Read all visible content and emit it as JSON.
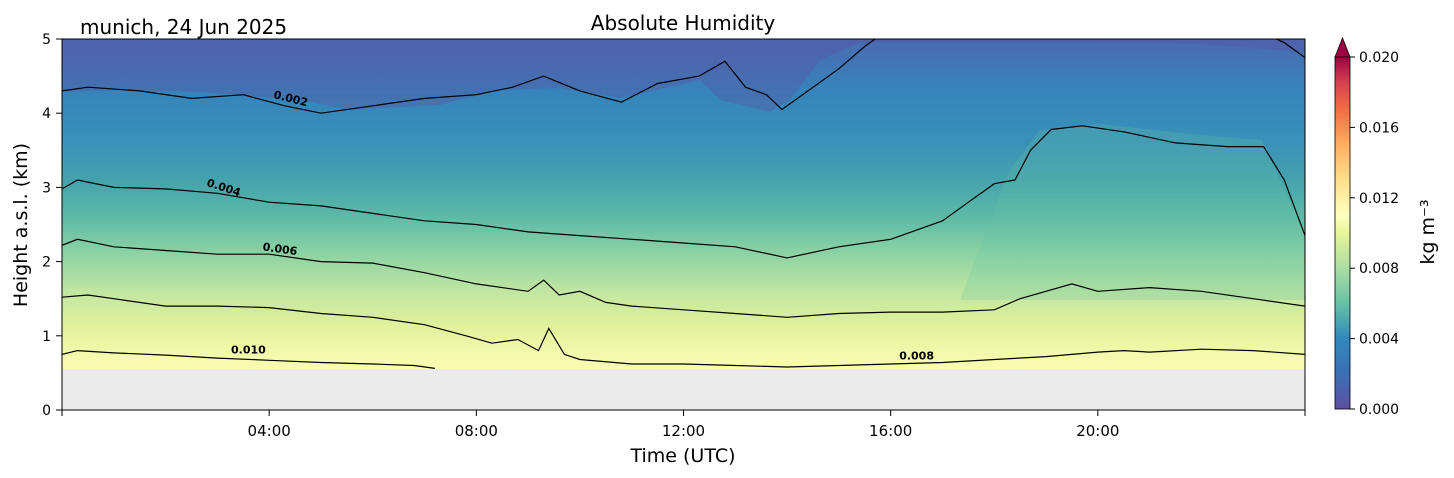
{
  "location_date": "munich, 24 Jun 2025",
  "chart_data": {
    "type": "heatmap",
    "title": "Absolute Humidity",
    "xlabel": "Time (UTC)",
    "ylabel": "Height a.s.l. (km)",
    "x_unit": "hours",
    "xlim": [
      0,
      24
    ],
    "ylim": [
      0,
      5
    ],
    "x_ticks": [
      {
        "value": 4,
        "label": "04:00"
      },
      {
        "value": 8,
        "label": "08:00"
      },
      {
        "value": 12,
        "label": "12:00"
      },
      {
        "value": 16,
        "label": "16:00"
      },
      {
        "value": 20,
        "label": "20:00"
      }
    ],
    "y_ticks": [
      {
        "value": 0,
        "label": "0"
      },
      {
        "value": 1,
        "label": "1"
      },
      {
        "value": 2,
        "label": "2"
      },
      {
        "value": 3,
        "label": "3"
      },
      {
        "value": 4,
        "label": "4"
      },
      {
        "value": 5,
        "label": "5"
      }
    ],
    "surface_height_km": 0.55,
    "colorbar": {
      "label": "kg m⁻³",
      "min": 0.0,
      "max": 0.02,
      "extend": "max",
      "levels": 40,
      "ticks": [
        {
          "value": 0.0,
          "label": "0.000"
        },
        {
          "value": 0.004,
          "label": "0.004"
        },
        {
          "value": 0.008,
          "label": "0.008"
        },
        {
          "value": 0.012,
          "label": "0.012"
        },
        {
          "value": 0.016,
          "label": "0.016"
        },
        {
          "value": 0.02,
          "label": "0.020"
        }
      ]
    },
    "contours": [
      {
        "level": 0.002,
        "label": "0.002",
        "label_at": [
          4.4,
          4.15
        ],
        "points": [
          [
            0,
            4.3
          ],
          [
            0.5,
            4.35
          ],
          [
            1.5,
            4.3
          ],
          [
            2.5,
            4.2
          ],
          [
            3.5,
            4.25
          ],
          [
            4.3,
            4.1
          ],
          [
            5,
            4.0
          ],
          [
            6,
            4.1
          ],
          [
            7,
            4.2
          ],
          [
            8,
            4.25
          ],
          [
            8.7,
            4.35
          ],
          [
            9.3,
            4.5
          ],
          [
            10,
            4.3
          ],
          [
            10.8,
            4.15
          ],
          [
            11.5,
            4.4
          ],
          [
            12.3,
            4.5
          ],
          [
            12.8,
            4.7
          ],
          [
            13.2,
            4.35
          ],
          [
            13.6,
            4.25
          ],
          [
            13.9,
            4.05
          ],
          [
            14.3,
            4.25
          ],
          [
            15,
            4.6
          ],
          [
            15.5,
            4.9
          ],
          [
            15.8,
            5.05
          ]
        ]
      },
      {
        "level": 0.002,
        "label": "",
        "label_at": null,
        "points": [
          [
            23.3,
            5.05
          ],
          [
            23.6,
            4.95
          ],
          [
            24,
            4.75
          ]
        ]
      },
      {
        "level": 0.004,
        "label": "0.004",
        "label_at": [
          3.1,
          2.95
        ],
        "points": [
          [
            0,
            2.98
          ],
          [
            0.3,
            3.1
          ],
          [
            1,
            3.0
          ],
          [
            2,
            2.98
          ],
          [
            3,
            2.92
          ],
          [
            4,
            2.8
          ],
          [
            5,
            2.75
          ],
          [
            6,
            2.65
          ],
          [
            7,
            2.55
          ],
          [
            8,
            2.5
          ],
          [
            9,
            2.4
          ],
          [
            10,
            2.35
          ],
          [
            11,
            2.3
          ],
          [
            12,
            2.25
          ],
          [
            13,
            2.2
          ],
          [
            14,
            2.05
          ],
          [
            15,
            2.2
          ],
          [
            16,
            2.3
          ],
          [
            17,
            2.55
          ],
          [
            17.5,
            2.8
          ],
          [
            18,
            3.05
          ],
          [
            18.4,
            3.1
          ],
          [
            18.7,
            3.5
          ],
          [
            19.1,
            3.78
          ],
          [
            19.7,
            3.83
          ],
          [
            20.5,
            3.75
          ],
          [
            21.5,
            3.6
          ],
          [
            22.5,
            3.55
          ],
          [
            23.2,
            3.55
          ],
          [
            23.6,
            3.1
          ],
          [
            24,
            2.35
          ]
        ]
      },
      {
        "level": 0.006,
        "label": "0.006",
        "label_at": [
          4.2,
          2.12
        ],
        "points": [
          [
            0,
            2.22
          ],
          [
            0.3,
            2.3
          ],
          [
            1,
            2.2
          ],
          [
            2,
            2.15
          ],
          [
            3,
            2.1
          ],
          [
            4,
            2.1
          ],
          [
            5,
            2.0
          ],
          [
            6,
            1.98
          ],
          [
            7,
            1.85
          ],
          [
            8,
            1.7
          ],
          [
            9,
            1.6
          ],
          [
            9.3,
            1.75
          ],
          [
            9.6,
            1.55
          ],
          [
            10,
            1.6
          ],
          [
            10.5,
            1.45
          ],
          [
            11,
            1.4
          ],
          [
            12,
            1.35
          ],
          [
            13,
            1.3
          ],
          [
            14,
            1.25
          ],
          [
            15,
            1.3
          ],
          [
            16,
            1.32
          ],
          [
            17,
            1.32
          ],
          [
            18,
            1.35
          ],
          [
            18.5,
            1.5
          ],
          [
            19,
            1.6
          ],
          [
            19.5,
            1.7
          ],
          [
            20,
            1.6
          ],
          [
            21,
            1.65
          ],
          [
            22,
            1.6
          ],
          [
            23,
            1.5
          ],
          [
            24,
            1.4
          ]
        ]
      },
      {
        "level": 0.008,
        "label": "0.008",
        "label_at": [
          16.5,
          0.68
        ],
        "points": [
          [
            0,
            1.52
          ],
          [
            0.5,
            1.55
          ],
          [
            1,
            1.5
          ],
          [
            2,
            1.4
          ],
          [
            3,
            1.4
          ],
          [
            4,
            1.38
          ],
          [
            5,
            1.3
          ],
          [
            6,
            1.25
          ],
          [
            7,
            1.15
          ],
          [
            7.8,
            1.0
          ],
          [
            8.3,
            0.9
          ],
          [
            8.8,
            0.95
          ],
          [
            9.2,
            0.8
          ],
          [
            9.4,
            1.1
          ],
          [
            9.7,
            0.75
          ],
          [
            10,
            0.68
          ],
          [
            11,
            0.62
          ],
          [
            12,
            0.62
          ],
          [
            13,
            0.6
          ],
          [
            14,
            0.58
          ],
          [
            15,
            0.6
          ],
          [
            16,
            0.62
          ],
          [
            17,
            0.64
          ],
          [
            18,
            0.68
          ],
          [
            19,
            0.72
          ],
          [
            20,
            0.78
          ],
          [
            20.5,
            0.8
          ],
          [
            21,
            0.78
          ],
          [
            22,
            0.82
          ],
          [
            23,
            0.8
          ],
          [
            24,
            0.75
          ]
        ]
      },
      {
        "level": 0.01,
        "label": "0.010",
        "label_at": [
          3.6,
          0.76
        ],
        "points": [
          [
            0,
            0.75
          ],
          [
            0.3,
            0.8
          ],
          [
            1,
            0.77
          ],
          [
            2,
            0.74
          ],
          [
            3,
            0.7
          ],
          [
            4,
            0.67
          ],
          [
            5,
            0.64
          ],
          [
            6,
            0.62
          ],
          [
            6.8,
            0.6
          ],
          [
            7.2,
            0.56
          ]
        ]
      }
    ]
  }
}
